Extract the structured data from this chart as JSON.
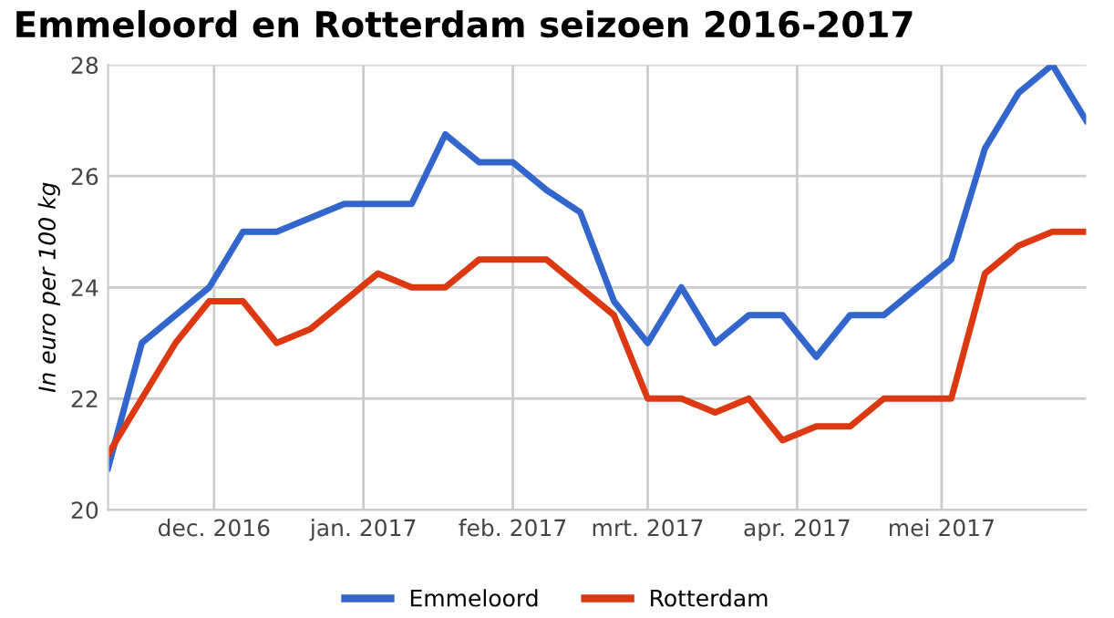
{
  "chart_data": {
    "type": "line",
    "title": "Emmeloord en Rotterdam seizoen 2016-2017",
    "ylabel": "In euro per 100 kg",
    "x": [
      "2016-11-09",
      "2016-11-16",
      "2016-11-23",
      "2016-11-30",
      "2016-12-07",
      "2016-12-14",
      "2016-12-21",
      "2016-12-28",
      "2017-01-04",
      "2017-01-11",
      "2017-01-18",
      "2017-01-25",
      "2017-02-01",
      "2017-02-08",
      "2017-02-15",
      "2017-02-22",
      "2017-03-01",
      "2017-03-08",
      "2017-03-15",
      "2017-03-22",
      "2017-03-29",
      "2017-04-05",
      "2017-04-12",
      "2017-04-19",
      "2017-04-26",
      "2017-05-03",
      "2017-05-10",
      "2017-05-17",
      "2017-05-24",
      "2017-05-31"
    ],
    "series": [
      {
        "name": "Emmeloord",
        "color": "#3366cc",
        "values": [
          20.75,
          23,
          23.5,
          24,
          25,
          25,
          25.25,
          25.5,
          25.5,
          25.5,
          26.75,
          26.25,
          26.25,
          25.75,
          25.35,
          23.75,
          23,
          24,
          23,
          23.5,
          23.5,
          22.75,
          23.5,
          23.5,
          24,
          24.5,
          26.5,
          27.5,
          28,
          27
        ]
      },
      {
        "name": "Rotterdam",
        "color": "#dc3912",
        "values": [
          21,
          22,
          23,
          23.75,
          23.75,
          23,
          23.25,
          23.75,
          24.25,
          24,
          24,
          24.5,
          24.5,
          24.5,
          24,
          23.5,
          22,
          22,
          21.75,
          22,
          21.25,
          21.5,
          21.5,
          22,
          22,
          22,
          24.25,
          24.75,
          25,
          25
        ]
      }
    ],
    "xlim": [
      "2016-11-09",
      "2017-05-31"
    ],
    "xticks": [
      {
        "value": "2016-12-01",
        "label": "dec. 2016"
      },
      {
        "value": "2017-01-01",
        "label": "jan. 2017"
      },
      {
        "value": "2017-02-01",
        "label": "feb. 2017"
      },
      {
        "value": "2017-03-01",
        "label": "mrt. 2017"
      },
      {
        "value": "2017-04-01",
        "label": "apr. 2017"
      },
      {
        "value": "2017-05-01",
        "label": "mei 2017"
      }
    ],
    "ylim": [
      20,
      28
    ],
    "yticks": [
      20,
      22,
      24,
      26,
      28
    ],
    "grid": true,
    "legend": "bottom",
    "line_style": "solid",
    "marker": "none"
  }
}
